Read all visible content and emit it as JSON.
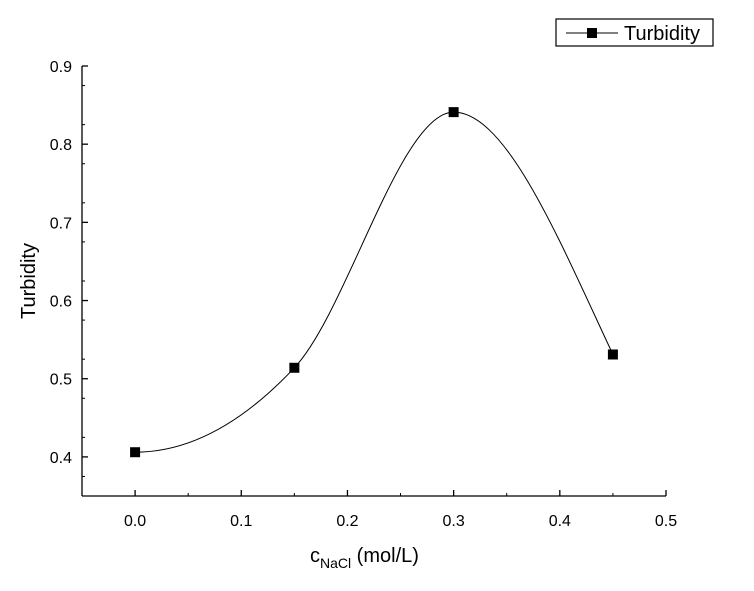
{
  "chart_data": {
    "type": "line",
    "title": "",
    "xlabel": {
      "main": "c",
      "sub": "NaCl",
      "unit": " (mol/L)"
    },
    "ylabel": "Turbidity",
    "xlim": [
      -0.05,
      0.5
    ],
    "ylim": [
      0.35,
      0.9
    ],
    "x_ticks": [
      0.0,
      0.1,
      0.2,
      0.3,
      0.4,
      0.5
    ],
    "x_tick_labels": [
      "0.0",
      "0.1",
      "0.2",
      "0.3",
      "0.4",
      "0.5"
    ],
    "y_ticks": [
      0.4,
      0.5,
      0.6,
      0.7,
      0.8,
      0.9
    ],
    "y_tick_labels": [
      "0.4",
      "0.5",
      "0.6",
      "0.7",
      "0.8",
      "0.9"
    ],
    "grid": false,
    "legend_position": "top-right",
    "smoothed_line": true,
    "series": [
      {
        "name": "Turbidity",
        "marker": "square",
        "color": "#000000",
        "x": [
          0.0,
          0.15,
          0.3,
          0.45
        ],
        "y": [
          0.406,
          0.514,
          0.841,
          0.531
        ]
      }
    ]
  }
}
